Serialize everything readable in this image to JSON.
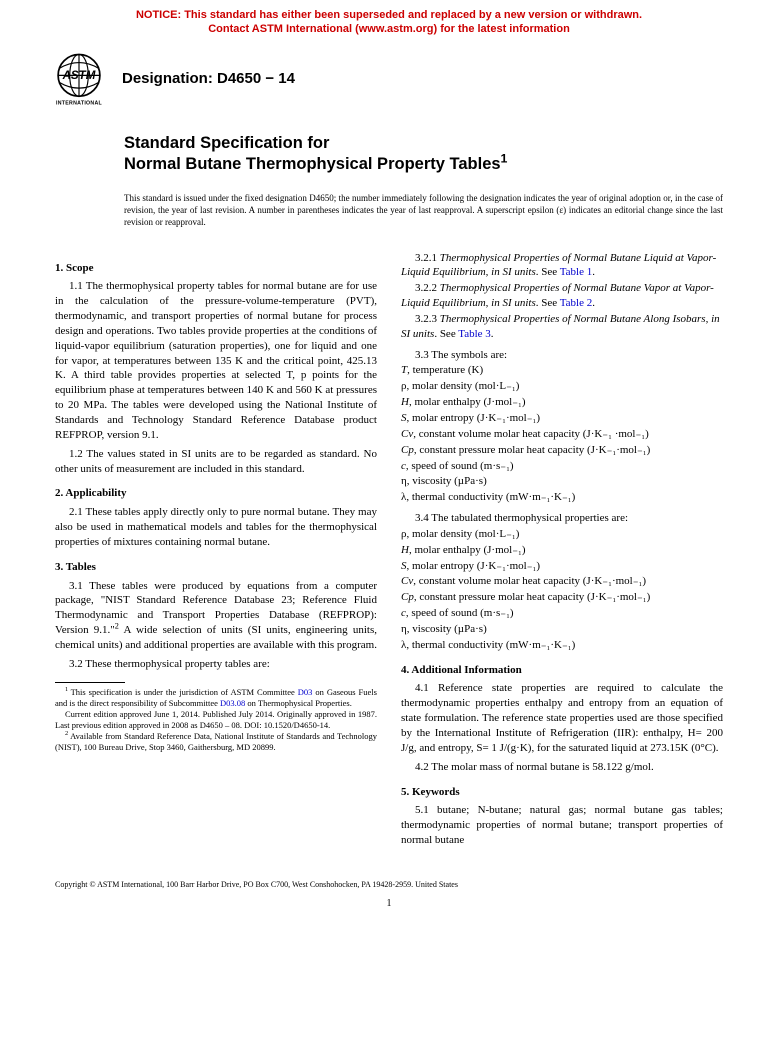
{
  "notice": {
    "line1": "NOTICE: This standard has either been superseded and replaced by a new version or withdrawn.",
    "line2": "Contact ASTM International (www.astm.org) for the latest information",
    "color": "#cc0000"
  },
  "logo": {
    "text_top": "ASTM",
    "text_bottom": "INTERNATIONAL",
    "color": "#000000"
  },
  "designation": "Designation: D4650 − 14",
  "title": {
    "line1": "Standard Specification for",
    "line2": "Normal Butane Thermophysical Property Tables",
    "super": "1"
  },
  "issuance": "This standard is issued under the fixed designation D4650; the number immediately following the designation indicates the year of original adoption or, in the case of revision, the year of last revision. A number in parentheses indicates the year of last reapproval. A superscript epsilon (ε) indicates an editorial change since the last revision or reapproval.",
  "left": {
    "scope_head": "1. Scope",
    "scope_1_1": "1.1 The thermophysical property tables for normal butane are for use in the calculation of the pressure-volume-temperature (PVT), thermodynamic, and transport properties of normal butane for process design and operations. Two tables provide properties at the conditions of liquid-vapor equilibrium (saturation properties), one for liquid and one for vapor, at temperatures between 135 K and the critical point, 425.13 K. A third table provides properties at selected T, p points for the equilibrium phase at temperatures between 140 K and 560 K at pressures to 20 MPa. The tables were developed using the National Institute of Standards and Technology Standard Reference Database product REFPROP, version 9.1.",
    "scope_1_2": "1.2 The values stated in SI units are to be regarded as standard. No other units of measurement are included in this standard.",
    "app_head": "2. Applicability",
    "app_2_1": "2.1 These tables apply directly only to pure normal butane. They may also be used in mathematical models and tables for the thermophysical properties of mixtures containing normal butane.",
    "tab_head": "3. Tables",
    "tab_3_1_a": "3.1 These tables were produced by equations from a computer package, \"NIST Standard Reference Database 23; Reference Fluid Thermodynamic and Transport Properties Database (REFPROP): Version 9.1.\"",
    "tab_3_1_b": " A wide selection of units (SI units, engineering units, chemical units) and additional properties are available with this program.",
    "tab_3_2": "3.2 These thermophysical property tables are:",
    "fn1_a": "This specification is under the jurisdiction of ASTM Committee ",
    "fn1_link1": "D03",
    "fn1_b": " on Gaseous Fuels and is the direct responsibility of Subcommittee ",
    "fn1_link2": "D03.08",
    "fn1_c": " on Thermophysical Properties.",
    "fn1_d": "Current edition approved June 1, 2014. Published July 2014. Originally approved in 1987. Last previous edition approved in 2008 as D4650 – 08. DOI: 10.1520/D4650-14.",
    "fn2": "Available from Standard Reference Data, National Institute of Standards and Technology (NIST), 100 Bureau Drive, Stop 3460, Gaithersburg, MD 20899."
  },
  "right": {
    "t321_a": "3.2.1 ",
    "t321_i": "Thermophysical Properties of Normal Butane Liquid at Vapor-Liquid Equilibrium, in SI units",
    "t321_b": ". See ",
    "t321_link": "Table 1",
    "t322_a": "3.2.2 ",
    "t322_i": "Thermophysical Properties of Normal Butane Vapor at Vapor-Liquid Equilibrium, in SI units",
    "t322_b": ". See ",
    "t322_link": "Table 2",
    "t323_a": "3.2.3 ",
    "t323_i": "Thermophysical Properties of Normal Butane Along Isobars, in SI units",
    "t323_b": ". See ",
    "t323_link": "Table 3",
    "sym_intro": "3.3 The symbols are:",
    "symbols": [
      {
        "sym": "T",
        "desc": ", temperature (K)",
        "italic": true
      },
      {
        "sym": "ρ",
        "desc": ", molar density (mol·L₋₁)",
        "italic": false
      },
      {
        "sym": "H",
        "desc": ", molar enthalpy (J·mol₋₁)",
        "italic": true
      },
      {
        "sym": "S",
        "desc": ", molar entropy (J·K₋₁·mol₋₁)",
        "italic": true
      },
      {
        "sym": "Cv",
        "desc": ", constant volume molar heat capacity (J·K₋₁ ·mol₋₁)",
        "italic": true
      },
      {
        "sym": "Cp",
        "desc": ", constant pressure molar heat capacity (J·K₋₁·mol₋₁)",
        "italic": true
      },
      {
        "sym": "c",
        "desc": ", speed of sound (m·s₋₁)",
        "italic": true
      },
      {
        "sym": "η",
        "desc": ", viscosity (µPa·s)",
        "italic": false
      },
      {
        "sym": "λ",
        "desc": ", thermal conductivity (mW·m₋₁·K₋₁)",
        "italic": false
      }
    ],
    "tab_intro": "3.4 The tabulated thermophysical properties are:",
    "tabulated": [
      {
        "sym": "ρ",
        "desc": ", molar density (mol·L₋₁)",
        "italic": false
      },
      {
        "sym": "H",
        "desc": ", molar enthalpy (J·mol₋₁)",
        "italic": true
      },
      {
        "sym": "S",
        "desc": ", molar entropy (J·K₋₁·mol₋₁)",
        "italic": true
      },
      {
        "sym": "Cv",
        "desc": ", constant volume molar heat capacity (J·K₋₁·mol₋₁)",
        "italic": true
      },
      {
        "sym": "Cp",
        "desc": ", constant pressure molar heat capacity (J·K₋₁·mol₋₁)",
        "italic": true
      },
      {
        "sym": "c",
        "desc": ", speed of sound (m·s₋₁)",
        "italic": true
      },
      {
        "sym": "η",
        "desc": ", viscosity (µPa·s)",
        "italic": false
      },
      {
        "sym": "λ",
        "desc": ", thermal conductivity (mW·m₋₁·K₋₁)",
        "italic": false
      }
    ],
    "add_head": "4. Additional Information",
    "add_4_1": "4.1 Reference state properties are required to calculate the thermodynamic properties enthalpy and entropy from an equation of state formulation. The reference state properties used are those specified by the International Institute of Refrigeration (IIR): enthalpy, H= 200 J/g, and entropy, S= 1 J/(g·K), for the saturated liquid at 273.15K (0°C).",
    "add_4_2": "4.2 The molar mass of normal butane is 58.122 g/mol.",
    "key_head": "5. Keywords",
    "key_5_1": "5.1 butane; N-butane; natural gas; normal butane gas tables; thermodynamic properties of normal butane; transport properties of normal butane"
  },
  "copyright": "Copyright © ASTM International, 100 Barr Harbor Drive, PO Box C700, West Conshohocken, PA 19428-2959. United States",
  "page_number": "1",
  "colors": {
    "link": "#0000cc",
    "notice": "#cc0000",
    "text": "#000000",
    "background": "#ffffff"
  },
  "typography": {
    "body_family": "Times New Roman",
    "heading_family": "Arial",
    "body_size_pt": 9,
    "title_size_pt": 13,
    "notice_size_pt": 9,
    "footnote_size_pt": 7
  }
}
